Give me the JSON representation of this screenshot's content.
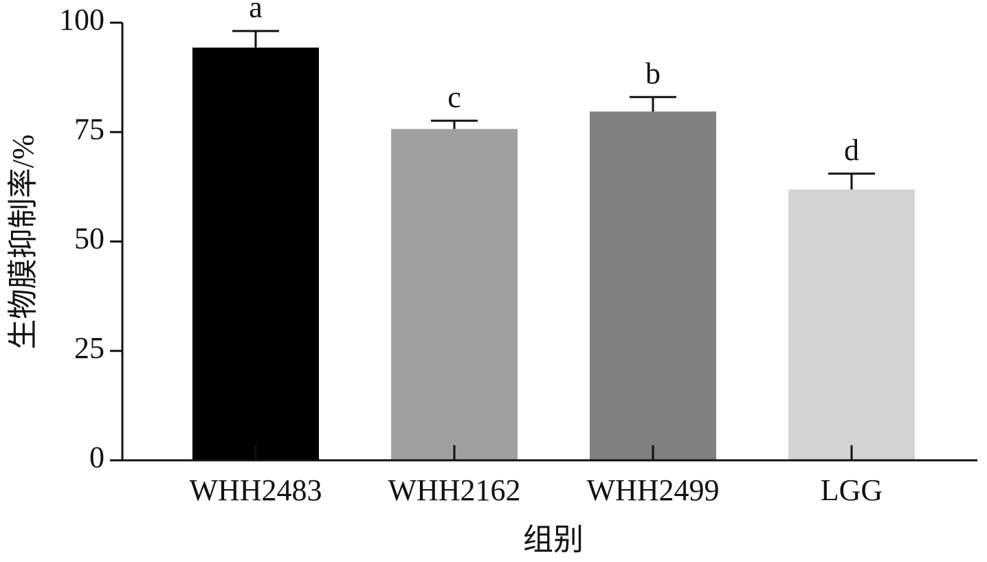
{
  "chart_data": {
    "type": "bar",
    "xlabel": "组别",
    "ylabel": "生物膜抑制率/%",
    "categories": [
      "WHH2483",
      "WHH2162",
      "WHH2499",
      "LGG"
    ],
    "values": [
      94.3,
      75.7,
      79.7,
      61.9
    ],
    "errors": [
      3.8,
      1.9,
      3.3,
      3.6
    ],
    "annotations": [
      "a",
      "c",
      "b",
      "d"
    ],
    "colors": [
      "#000000",
      "#a0a0a0",
      "#808080",
      "#d3d3d3"
    ],
    "ylim": [
      0,
      100
    ],
    "yticks": [
      0,
      25,
      50,
      75,
      100
    ],
    "grid": false
  }
}
